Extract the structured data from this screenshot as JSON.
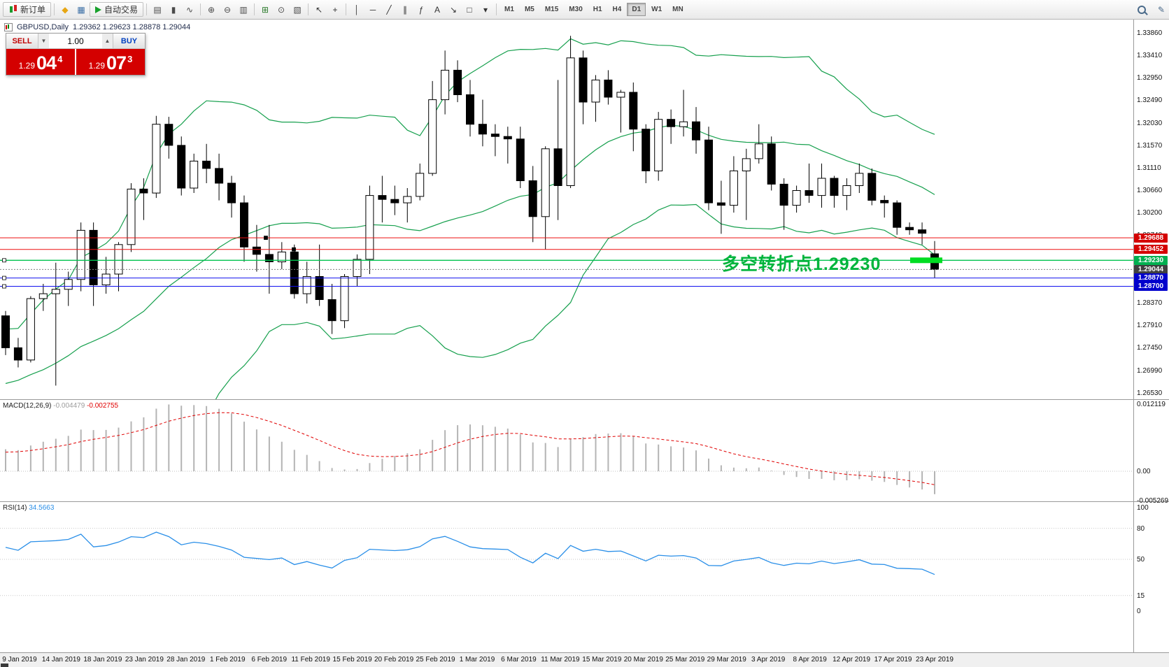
{
  "toolbar": {
    "items": [
      {
        "name": "new-order-button",
        "icon": "candles-icon",
        "label": "新订单"
      },
      {
        "sep": true
      },
      {
        "name": "favorites-button",
        "icon": "diamond-icon",
        "glyph": "◆",
        "color": "#e7a613"
      },
      {
        "name": "terminal-button",
        "icon": "grid-icon",
        "glyph": "▦",
        "color": "#3a6ea5"
      },
      {
        "name": "auto-trading-button",
        "icon": "play-icon",
        "label": "自动交易"
      },
      {
        "sep": true
      },
      {
        "name": "bar-chart-button",
        "icon": "bar-chart-icon",
        "glyph": "▤",
        "color": "#4a4a4a"
      },
      {
        "name": "candlestick-chart-button",
        "icon": "candlestick-icon",
        "glyph": "▮",
        "color": "#4a4a4a"
      },
      {
        "name": "line-chart-button",
        "icon": "line-chart-icon",
        "glyph": "∿",
        "color": "#4a4a4a"
      },
      {
        "sep": true
      },
      {
        "name": "zoom-in-button",
        "icon": "zoom-in-icon",
        "glyph": "⊕",
        "color": "#4a4a4a"
      },
      {
        "name": "zoom-out-button",
        "icon": "zoom-out-icon",
        "glyph": "⊖",
        "color": "#4a4a4a"
      },
      {
        "name": "tile-windows-button",
        "icon": "tile-windows-icon",
        "glyph": "▥",
        "color": "#4a4a4a"
      },
      {
        "sep": true
      },
      {
        "name": "indicators-button",
        "icon": "indicators-icon",
        "glyph": "⊞",
        "color": "#2a7a2a"
      },
      {
        "name": "periods-button",
        "icon": "clock-icon",
        "glyph": "⊙",
        "color": "#4a4a4a"
      },
      {
        "name": "templates-button",
        "icon": "templates-icon",
        "glyph": "▧",
        "color": "#4a4a4a"
      },
      {
        "sep": true
      },
      {
        "name": "cursor-button",
        "icon": "cursor-icon",
        "glyph": "↖",
        "color": "#333333"
      },
      {
        "name": "crosshair-button",
        "icon": "crosshair-icon",
        "glyph": "+",
        "color": "#333333"
      },
      {
        "sep": true
      },
      {
        "name": "vertical-line-button",
        "icon": "vertical-line-icon",
        "glyph": "│",
        "color": "#333333"
      },
      {
        "name": "horizontal-line-button",
        "icon": "horizontal-line-icon",
        "glyph": "─",
        "color": "#333333"
      },
      {
        "name": "trendline-button",
        "icon": "trendline-icon",
        "glyph": "╱",
        "color": "#333333"
      },
      {
        "name": "channel-button",
        "icon": "channel-icon",
        "glyph": "∥",
        "color": "#333333"
      },
      {
        "name": "fibonacci-button",
        "icon": "fibonacci-icon",
        "glyph": "ƒ",
        "color": "#333333"
      },
      {
        "name": "text-button",
        "icon": "text-icon",
        "glyph": "A",
        "color": "#333333"
      },
      {
        "name": "arrow-object-button",
        "icon": "arrow-icon",
        "glyph": "↘",
        "color": "#333333"
      },
      {
        "name": "shapes-button",
        "icon": "shapes-icon",
        "glyph": "□",
        "color": "#333333"
      },
      {
        "name": "objects-dropdown-button",
        "icon": "chevron-down-icon",
        "glyph": "▾",
        "color": "#333333"
      },
      {
        "sep": true
      }
    ],
    "timeframes": [
      "M1",
      "M5",
      "M15",
      "M30",
      "H1",
      "H4",
      "D1",
      "W1",
      "MN"
    ],
    "active_timeframe": "D1"
  },
  "chart": {
    "symbol_title": "GBPUSD,Daily",
    "ohlc_title": "1.29362 1.29623 1.28878 1.29044",
    "trade_panel": {
      "sell_label": "SELL",
      "buy_label": "BUY",
      "volume": "1.00",
      "sell_price_prefix": "1.29",
      "sell_price_big": "04",
      "sell_price_sup": "4",
      "buy_price_prefix": "1.29",
      "buy_price_big": "07",
      "buy_price_sup": "3"
    },
    "annotation": {
      "text": "多空转折点1.29230",
      "color": "#00b43c"
    },
    "price_axis_labels": [
      "1.33860",
      "1.33410",
      "1.32950",
      "1.32490",
      "1.32030",
      "1.31570",
      "1.31110",
      "1.30660",
      "1.30200",
      "1.29740",
      "1.28370",
      "1.27910",
      "1.27450",
      "1.26990",
      "1.26530"
    ],
    "hlines": [
      {
        "name": "resistance-line-1",
        "price": 1.29688,
        "tag": "1.29688",
        "color": "#ee1111",
        "tag_bg": "#d40000",
        "style": "solid"
      },
      {
        "name": "resistance-line-2",
        "price": 1.29452,
        "tag": "1.29452",
        "color": "#ee1111",
        "tag_bg": "#d40000",
        "style": "solid"
      },
      {
        "name": "pivot-line",
        "price": 1.2923,
        "tag": "1.29230",
        "color": "#00c24e",
        "tag_bg": "#00b050",
        "style": "solid",
        "highlight": true,
        "highlight_color": "#00dd22"
      },
      {
        "name": "bid-price-line",
        "price": 1.29044,
        "tag": "1.29044",
        "color": "#808080",
        "tag_bg": "#404040",
        "style": "dot"
      },
      {
        "name": "support-line-1",
        "price": 1.2887,
        "tag": "1.28870",
        "color": "#1111ee",
        "tag_bg": "#0000cc",
        "style": "solid"
      },
      {
        "name": "support-line-2",
        "price": 1.287,
        "tag": "1.28700",
        "color": "#1111ee",
        "tag_bg": "#0000cc",
        "style": "solid"
      }
    ]
  },
  "macd": {
    "label": "MACD(12,26,9)",
    "value_main": "-0.004479",
    "value_signal": "-0.002755",
    "axis_labels": [
      "0.012119",
      "0.00",
      "-0.005269"
    ]
  },
  "rsi": {
    "label": "RSI(14)",
    "value": "34.5663",
    "axis_labels": [
      "100",
      "80",
      "50",
      "15",
      "0"
    ],
    "levels": [
      80,
      50,
      15
    ]
  },
  "date_axis": [
    "9 Jan 2019",
    "14 Jan 2019",
    "18 Jan 2019",
    "23 Jan 2019",
    "28 Jan 2019",
    "1 Feb 2019",
    "6 Feb 2019",
    "11 Feb 2019",
    "15 Feb 2019",
    "20 Feb 2019",
    "25 Feb 2019",
    "1 Mar 2019",
    "6 Mar 2019",
    "11 Mar 2019",
    "15 Mar 2019",
    "20 Mar 2019",
    "25 Mar 2019",
    "29 Mar 2019",
    "3 Apr 2019",
    "8 Apr 2019",
    "12 Apr 2019",
    "17 Apr 2019",
    "23 Apr 2019"
  ],
  "chart_data": [
    {
      "type": "candlestick",
      "title": "GBPUSD,Daily",
      "ylim": [
        1.2639,
        1.3413
      ],
      "up_color": "#ffffff",
      "down_color": "#000000",
      "overlays": [
        {
          "name": "Bollinger Bands",
          "period": 20,
          "deviation": 2,
          "color": "#17a04e"
        }
      ],
      "indicator_seed_closes": [
        1.256,
        1.259,
        1.2615,
        1.2655,
        1.26,
        1.2575,
        1.2615,
        1.265,
        1.2665,
        1.268,
        1.27,
        1.272,
        1.269,
        1.265,
        1.27,
        1.273,
        1.2745,
        1.263,
        1.272,
        1.277
      ],
      "ohlc": [
        [
          "2019-01-09",
          1.281,
          1.282,
          1.273,
          1.2745
        ],
        [
          "2019-01-10",
          1.2745,
          1.2765,
          1.2705,
          1.272
        ],
        [
          "2019-01-11",
          1.272,
          1.285,
          1.2715,
          1.2845
        ],
        [
          "2019-01-14",
          1.2845,
          1.2875,
          1.282,
          1.2855
        ],
        [
          "2019-01-15",
          1.2855,
          1.2918,
          1.2668,
          1.2864
        ],
        [
          "2019-01-16",
          1.2864,
          1.29,
          1.283,
          1.2884
        ],
        [
          "2019-01-17",
          1.2884,
          1.3,
          1.286,
          1.2984
        ],
        [
          "2019-01-18",
          1.2984,
          1.3,
          1.283,
          1.2873
        ],
        [
          "2019-01-21",
          1.2873,
          1.293,
          1.2855,
          1.2895
        ],
        [
          "2019-01-22",
          1.2895,
          1.296,
          1.286,
          1.2955
        ],
        [
          "2019-01-23",
          1.2955,
          1.308,
          1.294,
          1.3068
        ],
        [
          "2019-01-24",
          1.3068,
          1.309,
          1.3005,
          1.306
        ],
        [
          "2019-01-25",
          1.306,
          1.3217,
          1.305,
          1.32
        ],
        [
          "2019-01-28",
          1.32,
          1.3215,
          1.313,
          1.3157
        ],
        [
          "2019-01-29",
          1.3157,
          1.3175,
          1.3055,
          1.307
        ],
        [
          "2019-01-30",
          1.307,
          1.314,
          1.306,
          1.3125
        ],
        [
          "2019-01-31",
          1.3125,
          1.316,
          1.308,
          1.311
        ],
        [
          "2019-02-01",
          1.311,
          1.314,
          1.3045,
          1.308
        ],
        [
          "2019-02-04",
          1.308,
          1.3095,
          1.301,
          1.304
        ],
        [
          "2019-02-05",
          1.304,
          1.3055,
          1.292,
          1.295
        ],
        [
          "2019-02-06",
          1.295,
          1.2995,
          1.29,
          1.2935
        ],
        [
          "2019-02-07",
          1.2935,
          1.2995,
          1.2855,
          1.292
        ],
        [
          "2019-02-08",
          1.292,
          1.296,
          1.2905,
          1.294
        ],
        [
          "2019-02-11",
          1.294,
          1.2955,
          1.2845,
          1.2855
        ],
        [
          "2019-02-12",
          1.2855,
          1.292,
          1.2835,
          1.289
        ],
        [
          "2019-02-13",
          1.289,
          1.2955,
          1.283,
          1.2843
        ],
        [
          "2019-02-14",
          1.2843,
          1.2875,
          1.2773,
          1.28
        ],
        [
          "2019-02-15",
          1.28,
          1.2895,
          1.2785,
          1.289
        ],
        [
          "2019-02-18",
          1.289,
          1.2935,
          1.287,
          1.2925
        ],
        [
          "2019-02-19",
          1.2925,
          1.3075,
          1.2895,
          1.3055
        ],
        [
          "2019-02-20",
          1.3055,
          1.3095,
          1.3,
          1.3047
        ],
        [
          "2019-02-21",
          1.3047,
          1.3075,
          1.3015,
          1.304
        ],
        [
          "2019-02-22",
          1.304,
          1.307,
          1.3,
          1.3053
        ],
        [
          "2019-02-25",
          1.3053,
          1.312,
          1.3045,
          1.31
        ],
        [
          "2019-02-26",
          1.31,
          1.3288,
          1.3095,
          1.325
        ],
        [
          "2019-02-27",
          1.325,
          1.335,
          1.322,
          1.331
        ],
        [
          "2019-02-28",
          1.331,
          1.333,
          1.3245,
          1.326
        ],
        [
          "2019-03-01",
          1.326,
          1.329,
          1.3175,
          1.32
        ],
        [
          "2019-03-04",
          1.32,
          1.325,
          1.3155,
          1.318
        ],
        [
          "2019-03-05",
          1.318,
          1.32,
          1.3135,
          1.3175
        ],
        [
          "2019-03-06",
          1.3175,
          1.3195,
          1.312,
          1.317
        ],
        [
          "2019-03-07",
          1.317,
          1.3195,
          1.307,
          1.3085
        ],
        [
          "2019-03-08",
          1.3085,
          1.3115,
          1.296,
          1.3012
        ],
        [
          "2019-03-11",
          1.3012,
          1.3155,
          1.2945,
          1.315
        ],
        [
          "2019-03-12",
          1.315,
          1.329,
          1.3005,
          1.3075
        ],
        [
          "2019-03-13",
          1.3075,
          1.338,
          1.307,
          1.3335
        ],
        [
          "2019-03-14",
          1.3335,
          1.335,
          1.32,
          1.3245
        ],
        [
          "2019-03-15",
          1.3245,
          1.33,
          1.3205,
          1.329
        ],
        [
          "2019-03-18",
          1.329,
          1.331,
          1.324,
          1.3255
        ],
        [
          "2019-03-19",
          1.3255,
          1.327,
          1.3183,
          1.3265
        ],
        [
          "2019-03-20",
          1.3265,
          1.3285,
          1.3145,
          1.319
        ],
        [
          "2019-03-21",
          1.319,
          1.32,
          1.308,
          1.3105
        ],
        [
          "2019-03-22",
          1.3105,
          1.3225,
          1.3085,
          1.321
        ],
        [
          "2019-03-25",
          1.321,
          1.323,
          1.316,
          1.3195
        ],
        [
          "2019-03-26",
          1.3195,
          1.327,
          1.3175,
          1.3205
        ],
        [
          "2019-03-27",
          1.3205,
          1.3235,
          1.314,
          1.3168
        ],
        [
          "2019-03-28",
          1.3168,
          1.3195,
          1.3025,
          1.304
        ],
        [
          "2019-03-29",
          1.304,
          1.3085,
          1.2977,
          1.3035
        ],
        [
          "2019-04-01",
          1.3035,
          1.3135,
          1.302,
          1.3105
        ],
        [
          "2019-04-02",
          1.3105,
          1.315,
          1.3005,
          1.313
        ],
        [
          "2019-04-03",
          1.313,
          1.32,
          1.312,
          1.316
        ],
        [
          "2019-04-04",
          1.316,
          1.3175,
          1.3065,
          1.3078
        ],
        [
          "2019-04-05",
          1.3078,
          1.309,
          1.2985,
          1.3035
        ],
        [
          "2019-04-08",
          1.3035,
          1.3075,
          1.302,
          1.3065
        ],
        [
          "2019-04-09",
          1.3065,
          1.312,
          1.304,
          1.3055
        ],
        [
          "2019-04-10",
          1.3055,
          1.312,
          1.303,
          1.309
        ],
        [
          "2019-04-11",
          1.309,
          1.3095,
          1.303,
          1.3055
        ],
        [
          "2019-04-12",
          1.3055,
          1.309,
          1.3025,
          1.3075
        ],
        [
          "2019-04-15",
          1.3075,
          1.312,
          1.306,
          1.31
        ],
        [
          "2019-04-16",
          1.31,
          1.311,
          1.3035,
          1.3045
        ],
        [
          "2019-04-17",
          1.3045,
          1.3055,
          1.301,
          1.304
        ],
        [
          "2019-04-18",
          1.304,
          1.3045,
          1.2975,
          1.299
        ],
        [
          "2019-04-19",
          1.299,
          1.3,
          1.2975,
          1.2985
        ],
        [
          "2019-04-22",
          1.2985,
          1.3,
          1.2955,
          1.2978
        ],
        [
          "2019-04-23",
          1.29362,
          1.29623,
          1.28878,
          1.29044
        ]
      ]
    },
    {
      "type": "bar",
      "name": "MACD",
      "params": "12,26,9",
      "derived": "histogram = EMA12(close)-EMA26(close); signal = EMA9(histogram)",
      "current_values": [
        -0.004479,
        -0.002755
      ],
      "ylim": [
        -0.005269,
        0.012119
      ],
      "histogram_color": "#b4b4b4",
      "signal_color": "#e00000"
    },
    {
      "type": "line",
      "name": "RSI",
      "period": 14,
      "current": 34.5663,
      "ylim": [
        0,
        100
      ],
      "levels": [
        80,
        50,
        15
      ],
      "line_color": "#2a8fe8"
    }
  ]
}
